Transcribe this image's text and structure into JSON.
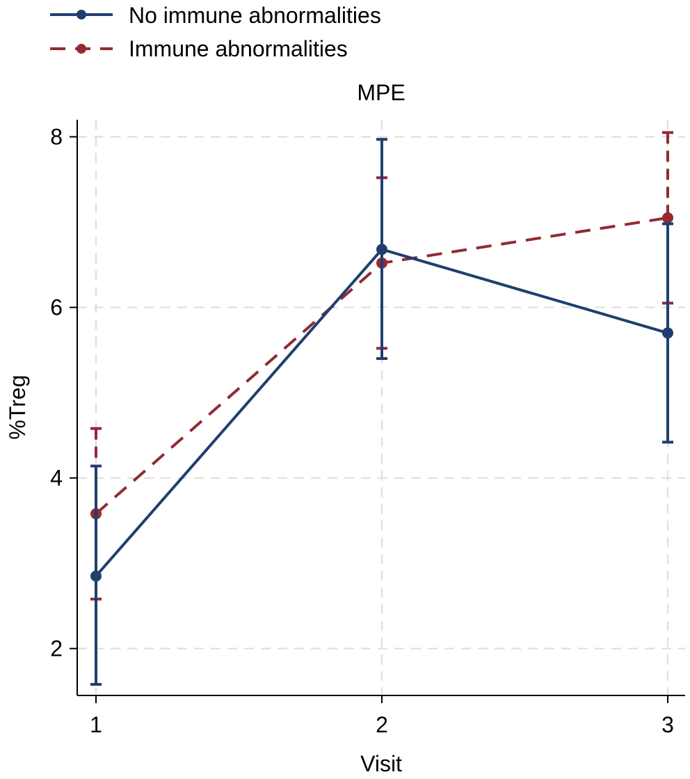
{
  "chart_data": {
    "type": "line",
    "title": "MPE",
    "xlabel": "Visit",
    "ylabel": "%Treg",
    "x": [
      1,
      2,
      3
    ],
    "x_tick_labels": [
      "1",
      "2",
      "3"
    ],
    "y_ticks": [
      2,
      4,
      6,
      8
    ],
    "y_tick_labels": [
      "2",
      "4",
      "6",
      "8"
    ],
    "xlim": [
      1,
      3
    ],
    "ylim": [
      1.45,
      8.2
    ],
    "grid": true,
    "legend_position": "top-left",
    "series": [
      {
        "name": "No immune abnormalities",
        "color": "#1f3f6e",
        "line_style": "solid",
        "values": [
          2.85,
          6.68,
          5.7
        ],
        "error_low": [
          1.58,
          5.4,
          4.42
        ],
        "error_high": [
          4.14,
          7.97,
          6.98
        ]
      },
      {
        "name": "Immune abnormalities",
        "color": "#922a34",
        "line_style": "dashed",
        "values": [
          3.58,
          6.52,
          7.05
        ],
        "error_low": [
          2.58,
          5.52,
          6.05
        ],
        "error_high": [
          4.58,
          7.52,
          8.05
        ]
      }
    ]
  }
}
